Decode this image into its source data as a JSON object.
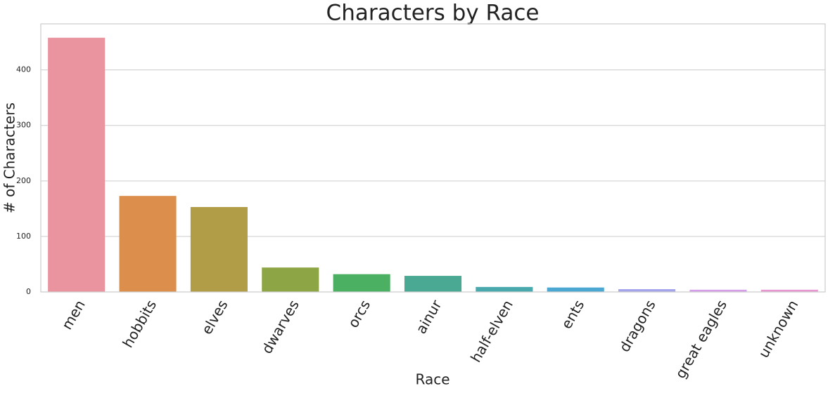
{
  "chart_data": {
    "type": "bar",
    "title": "Characters by Race",
    "x_label": "Race",
    "y_label": "# of Characters",
    "categories": [
      "men",
      "hobbits",
      "elves",
      "dwarves",
      "orcs",
      "ainur",
      "half-elven",
      "ents",
      "dragons",
      "great eagles",
      "unknown"
    ],
    "values": [
      458,
      173,
      153,
      44,
      32,
      29,
      9,
      8,
      5,
      4,
      4
    ],
    "colors": [
      "#e9949f",
      "#dc8f4d",
      "#b19c47",
      "#8da545",
      "#4bb062",
      "#4aa992",
      "#4aa9ad",
      "#4ca8d3",
      "#a4a4ec",
      "#d49ee8",
      "#e798d1"
    ],
    "ylim": [
      0,
      483
    ],
    "yticks": [
      0,
      100,
      200,
      300,
      400
    ],
    "grid": true
  }
}
